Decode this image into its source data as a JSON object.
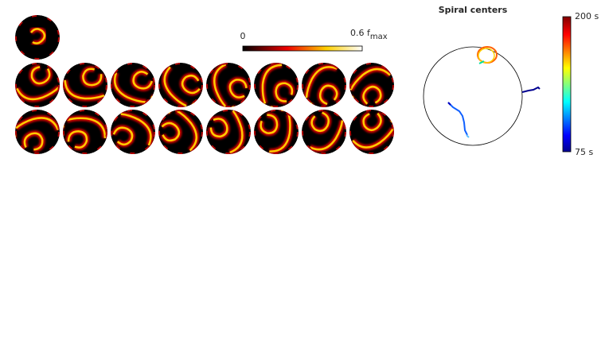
{
  "activity_colorbar": {
    "min_label": "0",
    "max_label": "0.6 f",
    "max_label_subscript": "max"
  },
  "spiral_panel": {
    "title": "Spiral centers",
    "time_colorbar": {
      "top_label": "200 s",
      "bottom_label": "75 s"
    }
  }
}
